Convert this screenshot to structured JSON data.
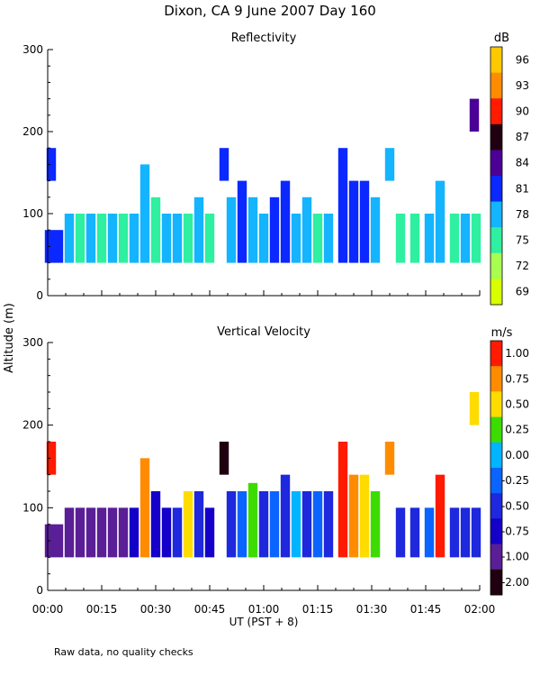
{
  "page": {
    "title": "Dixon, CA  9 June 2007  Day 160",
    "ylabel": "Altitude (m)",
    "xlabel": "UT  (PST + 8)",
    "footnote": "Raw data, no quality checks"
  },
  "chart_data": [
    {
      "type": "heatmap",
      "title": "Reflectivity",
      "x_ticks": [
        "00:00",
        "00:15",
        "00:30",
        "00:45",
        "01:00",
        "01:15",
        "01:30",
        "01:45",
        "02:00"
      ],
      "x_range_minutes": [
        0,
        120
      ],
      "ylim": [
        0,
        300
      ],
      "y_ticks": [
        0,
        100,
        200,
        300
      ],
      "colorbar": {
        "unit": "dB",
        "labels": [
          "96",
          "93",
          "90",
          "87",
          "84",
          "81",
          "78",
          "75",
          "72",
          "69"
        ],
        "colors": [
          "#ffc800",
          "#ff8c00",
          "#ff1a00",
          "#200010",
          "#4b0096",
          "#0a28ff",
          "#14b4ff",
          "#2ef0a0",
          "#a8ff50",
          "#d8ff00"
        ]
      },
      "columns_note": "dense echo mostly 40-100 m, sporadic returns up to 180 m and 240 m",
      "columns": [
        {
          "t": 0.5,
          "bottom": 40,
          "top": 80,
          "color": "#0a28ff"
        },
        {
          "t": 1.0,
          "bottom": 140,
          "top": 180,
          "color": "#0a28ff"
        },
        {
          "t": 3,
          "bottom": 40,
          "top": 80,
          "color": "#0a28ff"
        },
        {
          "t": 6,
          "bottom": 40,
          "top": 100,
          "color": "#14b4ff"
        },
        {
          "t": 9,
          "bottom": 40,
          "top": 100,
          "color": "#2ef0a0"
        },
        {
          "t": 12,
          "bottom": 40,
          "top": 100,
          "color": "#14b4ff"
        },
        {
          "t": 15,
          "bottom": 40,
          "top": 100,
          "color": "#2ef0a0"
        },
        {
          "t": 18,
          "bottom": 40,
          "top": 100,
          "color": "#14b4ff"
        },
        {
          "t": 21,
          "bottom": 40,
          "top": 100,
          "color": "#2ef0a0"
        },
        {
          "t": 24,
          "bottom": 40,
          "top": 100,
          "color": "#14b4ff"
        },
        {
          "t": 27,
          "bottom": 40,
          "top": 160,
          "color": "#14b4ff"
        },
        {
          "t": 30,
          "bottom": 40,
          "top": 120,
          "color": "#2ef0a0"
        },
        {
          "t": 33,
          "bottom": 40,
          "top": 100,
          "color": "#14b4ff"
        },
        {
          "t": 36,
          "bottom": 40,
          "top": 100,
          "color": "#14b4ff"
        },
        {
          "t": 39,
          "bottom": 40,
          "top": 100,
          "color": "#2ef0a0"
        },
        {
          "t": 42,
          "bottom": 40,
          "top": 120,
          "color": "#14b4ff"
        },
        {
          "t": 45,
          "bottom": 40,
          "top": 100,
          "color": "#2ef0a0"
        },
        {
          "t": 49,
          "bottom": 140,
          "top": 180,
          "color": "#0a28ff"
        },
        {
          "t": 51,
          "bottom": 40,
          "top": 120,
          "color": "#14b4ff"
        },
        {
          "t": 54,
          "bottom": 40,
          "top": 140,
          "color": "#0a28ff"
        },
        {
          "t": 57,
          "bottom": 40,
          "top": 120,
          "color": "#14b4ff"
        },
        {
          "t": 60,
          "bottom": 40,
          "top": 100,
          "color": "#14b4ff"
        },
        {
          "t": 63,
          "bottom": 40,
          "top": 120,
          "color": "#0a28ff"
        },
        {
          "t": 66,
          "bottom": 40,
          "top": 140,
          "color": "#0a28ff"
        },
        {
          "t": 69,
          "bottom": 40,
          "top": 100,
          "color": "#14b4ff"
        },
        {
          "t": 72,
          "bottom": 40,
          "top": 120,
          "color": "#14b4ff"
        },
        {
          "t": 75,
          "bottom": 40,
          "top": 100,
          "color": "#2ef0a0"
        },
        {
          "t": 78,
          "bottom": 40,
          "top": 100,
          "color": "#14b4ff"
        },
        {
          "t": 82,
          "bottom": 40,
          "top": 180,
          "color": "#0a28ff"
        },
        {
          "t": 85,
          "bottom": 40,
          "top": 140,
          "color": "#0a28ff"
        },
        {
          "t": 88,
          "bottom": 40,
          "top": 140,
          "color": "#0a28ff"
        },
        {
          "t": 91,
          "bottom": 40,
          "top": 120,
          "color": "#14b4ff"
        },
        {
          "t": 95,
          "bottom": 140,
          "top": 180,
          "color": "#14b4ff"
        },
        {
          "t": 98,
          "bottom": 40,
          "top": 100,
          "color": "#2ef0a0"
        },
        {
          "t": 102,
          "bottom": 40,
          "top": 100,
          "color": "#2ef0a0"
        },
        {
          "t": 106,
          "bottom": 40,
          "top": 100,
          "color": "#14b4ff"
        },
        {
          "t": 109,
          "bottom": 40,
          "top": 140,
          "color": "#14b4ff"
        },
        {
          "t": 113,
          "bottom": 40,
          "top": 100,
          "color": "#2ef0a0"
        },
        {
          "t": 116,
          "bottom": 40,
          "top": 100,
          "color": "#14b4ff"
        },
        {
          "t": 118.5,
          "bottom": 200,
          "top": 240,
          "color": "#4b0096"
        },
        {
          "t": 119,
          "bottom": 40,
          "top": 100,
          "color": "#2ef0a0"
        }
      ]
    },
    {
      "type": "heatmap",
      "title": "Vertical Velocity",
      "x_ticks": [
        "00:00",
        "00:15",
        "00:30",
        "00:45",
        "01:00",
        "01:15",
        "01:30",
        "01:45",
        "02:00"
      ],
      "x_range_minutes": [
        0,
        120
      ],
      "ylim": [
        0,
        300
      ],
      "y_ticks": [
        0,
        100,
        200,
        300
      ],
      "colorbar": {
        "unit": "m/s",
        "labels": [
          "1.00",
          "0.75",
          "0.50",
          "0.25",
          "0.00",
          "-0.25",
          "-0.50",
          "-0.75",
          "-1.00",
          "-2.00"
        ],
        "colors": [
          "#ff1a00",
          "#ff8c00",
          "#ffdc00",
          "#3cdc00",
          "#00b4ff",
          "#0a64ff",
          "#1e28dc",
          "#1400c8",
          "#5a1e96",
          "#200010"
        ]
      },
      "columns_note": "mostly -0.75 to -1.00 m/s below 100 m, mixed updrafts near 01:20-01:30",
      "columns": [
        {
          "t": 0.5,
          "bottom": 40,
          "top": 80,
          "color": "#5a1e96"
        },
        {
          "t": 1.0,
          "bottom": 140,
          "top": 180,
          "color": "#ff1a00"
        },
        {
          "t": 3,
          "bottom": 40,
          "top": 80,
          "color": "#5a1e96"
        },
        {
          "t": 6,
          "bottom": 40,
          "top": 100,
          "color": "#5a1e96"
        },
        {
          "t": 9,
          "bottom": 40,
          "top": 100,
          "color": "#5a1e96"
        },
        {
          "t": 12,
          "bottom": 40,
          "top": 100,
          "color": "#5a1e96"
        },
        {
          "t": 15,
          "bottom": 40,
          "top": 100,
          "color": "#5a1e96"
        },
        {
          "t": 18,
          "bottom": 40,
          "top": 100,
          "color": "#5a1e96"
        },
        {
          "t": 21,
          "bottom": 40,
          "top": 100,
          "color": "#5a1e96"
        },
        {
          "t": 24,
          "bottom": 40,
          "top": 100,
          "color": "#1400c8"
        },
        {
          "t": 27,
          "bottom": 40,
          "top": 160,
          "color": "#ff8c00"
        },
        {
          "t": 30,
          "bottom": 40,
          "top": 120,
          "color": "#1400c8"
        },
        {
          "t": 33,
          "bottom": 40,
          "top": 100,
          "color": "#1400c8"
        },
        {
          "t": 36,
          "bottom": 40,
          "top": 100,
          "color": "#1e28dc"
        },
        {
          "t": 39,
          "bottom": 40,
          "top": 120,
          "color": "#ffdc00"
        },
        {
          "t": 42,
          "bottom": 40,
          "top": 120,
          "color": "#1e28dc"
        },
        {
          "t": 45,
          "bottom": 40,
          "top": 100,
          "color": "#1400c8"
        },
        {
          "t": 49,
          "bottom": 140,
          "top": 180,
          "color": "#200010"
        },
        {
          "t": 51,
          "bottom": 40,
          "top": 120,
          "color": "#1e28dc"
        },
        {
          "t": 54,
          "bottom": 40,
          "top": 120,
          "color": "#0a64ff"
        },
        {
          "t": 57,
          "bottom": 40,
          "top": 130,
          "color": "#3cdc00"
        },
        {
          "t": 60,
          "bottom": 40,
          "top": 120,
          "color": "#1e28dc"
        },
        {
          "t": 63,
          "bottom": 40,
          "top": 120,
          "color": "#0a64ff"
        },
        {
          "t": 66,
          "bottom": 40,
          "top": 140,
          "color": "#1e28dc"
        },
        {
          "t": 69,
          "bottom": 40,
          "top": 120,
          "color": "#00b4ff"
        },
        {
          "t": 72,
          "bottom": 40,
          "top": 120,
          "color": "#1e28dc"
        },
        {
          "t": 75,
          "bottom": 40,
          "top": 120,
          "color": "#0a64ff"
        },
        {
          "t": 78,
          "bottom": 40,
          "top": 120,
          "color": "#1e28dc"
        },
        {
          "t": 82,
          "bottom": 40,
          "top": 180,
          "color": "#ff1a00"
        },
        {
          "t": 85,
          "bottom": 40,
          "top": 140,
          "color": "#ff8c00"
        },
        {
          "t": 88,
          "bottom": 40,
          "top": 140,
          "color": "#ffdc00"
        },
        {
          "t": 91,
          "bottom": 40,
          "top": 120,
          "color": "#3cdc00"
        },
        {
          "t": 95,
          "bottom": 140,
          "top": 180,
          "color": "#ff8c00"
        },
        {
          "t": 98,
          "bottom": 40,
          "top": 100,
          "color": "#1e28dc"
        },
        {
          "t": 102,
          "bottom": 40,
          "top": 100,
          "color": "#1e28dc"
        },
        {
          "t": 106,
          "bottom": 40,
          "top": 100,
          "color": "#0a64ff"
        },
        {
          "t": 109,
          "bottom": 40,
          "top": 140,
          "color": "#ff1a00"
        },
        {
          "t": 113,
          "bottom": 40,
          "top": 100,
          "color": "#1e28dc"
        },
        {
          "t": 116,
          "bottom": 40,
          "top": 100,
          "color": "#1e28dc"
        },
        {
          "t": 118.5,
          "bottom": 200,
          "top": 240,
          "color": "#ffdc00"
        },
        {
          "t": 119,
          "bottom": 40,
          "top": 100,
          "color": "#1e28dc"
        }
      ]
    }
  ]
}
